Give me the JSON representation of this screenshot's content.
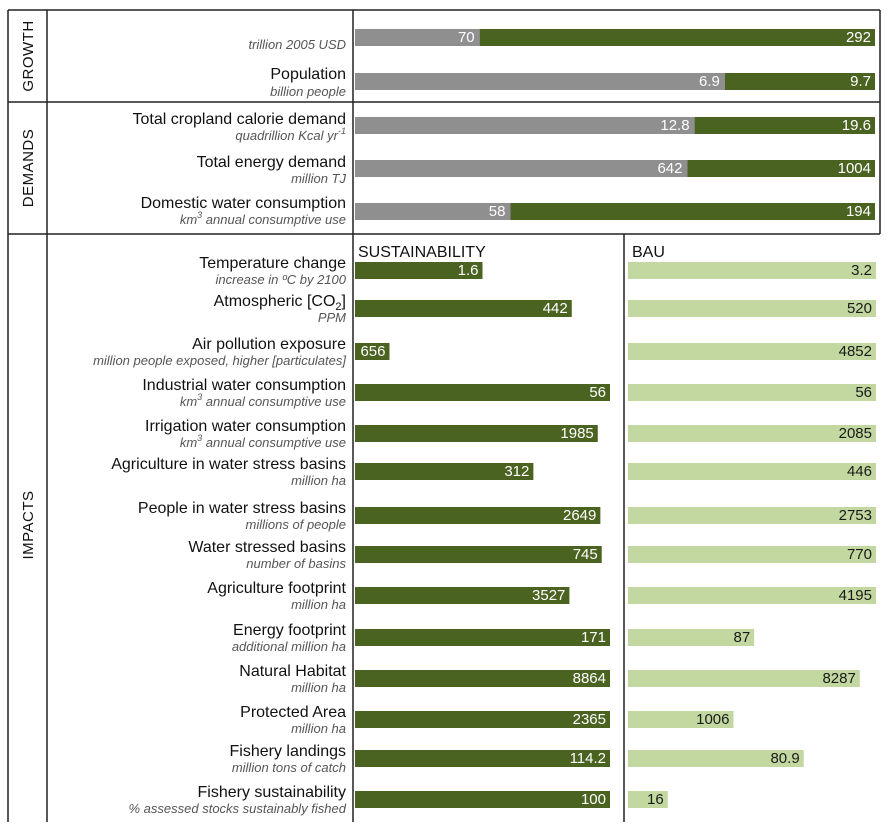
{
  "colors": {
    "grey": "#8f8f8f",
    "dark_green": "#4b6320",
    "light_green": "#c3d8a0",
    "text_dark": "#1a1a1a"
  },
  "sections": [
    "GROWTH",
    "DEMANDS",
    "IMPACTS"
  ],
  "columns": {
    "sustainability": "SUSTAINABILITY",
    "bau": "BAU"
  },
  "chart_data": [
    {
      "type": "bar",
      "section": "GROWTH",
      "rows": [
        {
          "label": "",
          "unit": "trillion 2005 USD",
          "current": 70,
          "future": 292
        },
        {
          "label": "Population",
          "unit": "billion people",
          "current": 6.9,
          "future": 9.7
        }
      ]
    },
    {
      "type": "bar",
      "section": "DEMANDS",
      "rows": [
        {
          "label": "Total cropland calorie demand",
          "unit": "quadrillion Kcal yr",
          "unit_sup": "-1",
          "current": 12.8,
          "future": 19.6
        },
        {
          "label": "Total energy demand",
          "unit": "million TJ",
          "current": 642,
          "future": 1004
        },
        {
          "label": "Domestic water consumption",
          "unit": "km",
          "unit_sup": "3",
          "unit_rest": " annual consumptive use",
          "current": 58,
          "future": 194
        }
      ]
    },
    {
      "type": "bar",
      "section": "IMPACTS",
      "series": [
        {
          "name": "SUSTAINABILITY"
        },
        {
          "name": "BAU"
        }
      ],
      "rows": [
        {
          "label": "Temperature change",
          "unit": "increase in ºC by 2100",
          "sustainability": 1.6,
          "bau": 3.2
        },
        {
          "label": "Atmospheric [CO",
          "label_sub": "2",
          "label_rest": "]",
          "unit": "PPM",
          "unit_italic": false,
          "sustainability": 442,
          "bau": 520
        },
        {
          "label": "Air pollution exposure",
          "unit": "million people exposed, higher [particulates]",
          "unit_italic": false,
          "sustainability": 656,
          "bau": 4852
        },
        {
          "label": "Industrial water consumption",
          "unit": "km",
          "unit_sup": "3",
          "unit_rest": " annual consumptive use",
          "sustainability": 56,
          "bau": 56
        },
        {
          "label": "Irrigation water consumption",
          "unit": "km",
          "unit_sup": "3",
          "unit_rest": " annual consumptive use",
          "sustainability": 1985,
          "bau": 2085
        },
        {
          "label": "Agriculture in water stress basins",
          "unit": "million ha",
          "sustainability": 312,
          "bau": 446
        },
        {
          "label": "People in water stress basins",
          "unit": "millions of people",
          "sustainability": 2649,
          "bau": 2753
        },
        {
          "label": "Water stressed basins",
          "unit": "number of basins",
          "sustainability": 745,
          "bau": 770
        },
        {
          "label": "Agriculture footprint",
          "unit": "million ha",
          "sustainability": 3527,
          "bau": 4195
        },
        {
          "label": "Energy footprint",
          "unit": "additional million ha",
          "sustainability": 171,
          "bau": 87
        },
        {
          "label": "Natural Habitat",
          "unit": "million ha",
          "sustainability": 8864,
          "bau": 8287
        },
        {
          "label": "Protected Area",
          "unit": "million ha",
          "sustainability": 2365,
          "bau": 1006
        },
        {
          "label": "Fishery landings",
          "unit": "million tons of catch",
          "sustainability": 114.2,
          "bau": 80.9
        },
        {
          "label": "Fishery sustainability",
          "unit": "% assessed stocks sustainably fished",
          "sustainability": 100,
          "bau": 16
        }
      ]
    }
  ]
}
